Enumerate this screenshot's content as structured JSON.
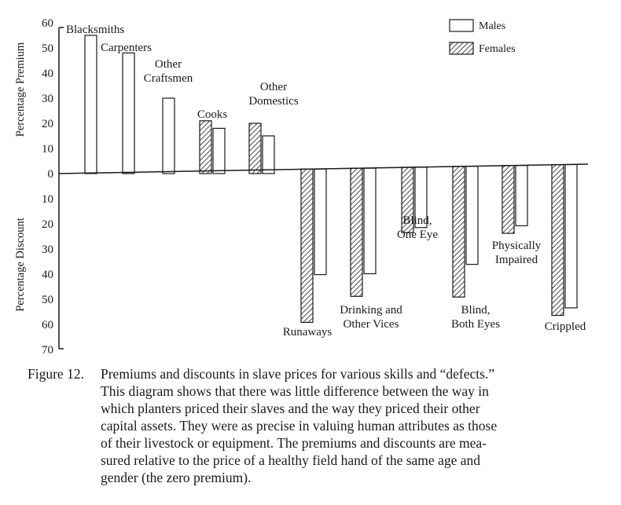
{
  "chart_data": {
    "type": "bar",
    "orientation": "diverging",
    "yaxis": {
      "premium_label": "Percentage Premium",
      "discount_label": "Percentage Discount",
      "premium_ticks": [
        "60",
        "50",
        "40",
        "30",
        "20",
        "10"
      ],
      "zero_tick": "0",
      "discount_ticks": [
        "10",
        "20",
        "30",
        "40",
        "50",
        "60",
        "70"
      ],
      "ylim": [
        -70,
        60
      ]
    },
    "legend": {
      "placement": "top-right",
      "males_label": "Males",
      "females_label": "Females"
    },
    "premiums": [
      {
        "label_lines": [
          "Blacksmiths"
        ],
        "male": 55
      },
      {
        "label_lines": [
          "Carpenters"
        ],
        "male": 48
      },
      {
        "label_lines": [
          "Other",
          "Craftsmen"
        ],
        "male": 30
      },
      {
        "label_lines": [
          "Cooks"
        ],
        "female": 21,
        "male": 18
      },
      {
        "label_lines": [
          "Other",
          "Domestics"
        ],
        "female": 20,
        "male": 15
      }
    ],
    "discounts": [
      {
        "label_lines": [
          "Runaways"
        ],
        "female": 61,
        "male": 42
      },
      {
        "label_lines": [
          "Drinking and",
          "Other Vices"
        ],
        "female": 51,
        "male": 42
      },
      {
        "label_lines": [
          "Blind,",
          "One Eye"
        ],
        "female": 26,
        "male": 24
      },
      {
        "label_lines": [
          "Blind,",
          "Both Eyes"
        ],
        "female": 52,
        "male": 39
      },
      {
        "label_lines": [
          "Physically",
          "Impaired"
        ],
        "female": 27,
        "male": 24
      },
      {
        "label_lines": [
          "Crippled"
        ],
        "female": 60,
        "male": 57
      }
    ]
  },
  "caption": {
    "number": "Figure 12.",
    "lines": [
      "Premiums and discounts in slave prices for various skills and “defects.”",
      "This diagram shows that there was little difference between the way in",
      "which planters priced their slaves and the way they priced their other",
      "capital assets. They were as precise in valuing human attributes as those",
      "of their livestock or equipment. The premiums and discounts are mea-",
      "sured relative to the price of a healthy field hand of the same age and",
      "gender (the zero premium)."
    ]
  }
}
